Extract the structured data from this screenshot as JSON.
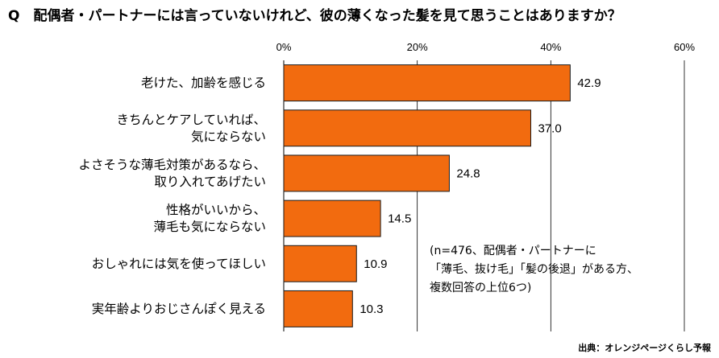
{
  "title": "Q　配偶者・パートナーには言っていないけれど、彼の薄くなった髪を見て思うことはありますか？",
  "note": [
    "(n=476、配偶者・パートナーに",
    "「薄毛、抜け毛」「髪の後退」がある方、",
    "複数回答の上位6つ)"
  ],
  "source": "出典：オレンジページくらし予報",
  "colors": {
    "bar": "#F26B0F",
    "bar_stroke": "#1a1a1a",
    "grid": "#000000"
  },
  "chart_data": {
    "type": "bar",
    "orientation": "horizontal",
    "categories": [
      [
        "老けた、加齢を感じる"
      ],
      [
        "きちんとケアしていれば、",
        "気にならない"
      ],
      [
        "よさそうな薄毛対策があるなら、",
        "取り入れてあげたい"
      ],
      [
        "性格がいいから、",
        "薄毛も気にならない"
      ],
      [
        "おしゃれには気を使ってほしい"
      ],
      [
        "実年齢よりおじさんぽく見える"
      ]
    ],
    "values": [
      42.9,
      37.0,
      24.8,
      14.5,
      10.9,
      10.3
    ],
    "value_labels": [
      "42.9",
      "37.0",
      "24.8",
      "14.5",
      "10.9",
      "10.3"
    ],
    "xlim": [
      0,
      60
    ],
    "xticks": [
      0,
      20,
      40,
      60
    ],
    "xtick_labels": [
      "0%",
      "20%",
      "40%",
      "60%"
    ],
    "xlabel": "",
    "ylabel": "",
    "grid": true,
    "axis_position": "top"
  }
}
